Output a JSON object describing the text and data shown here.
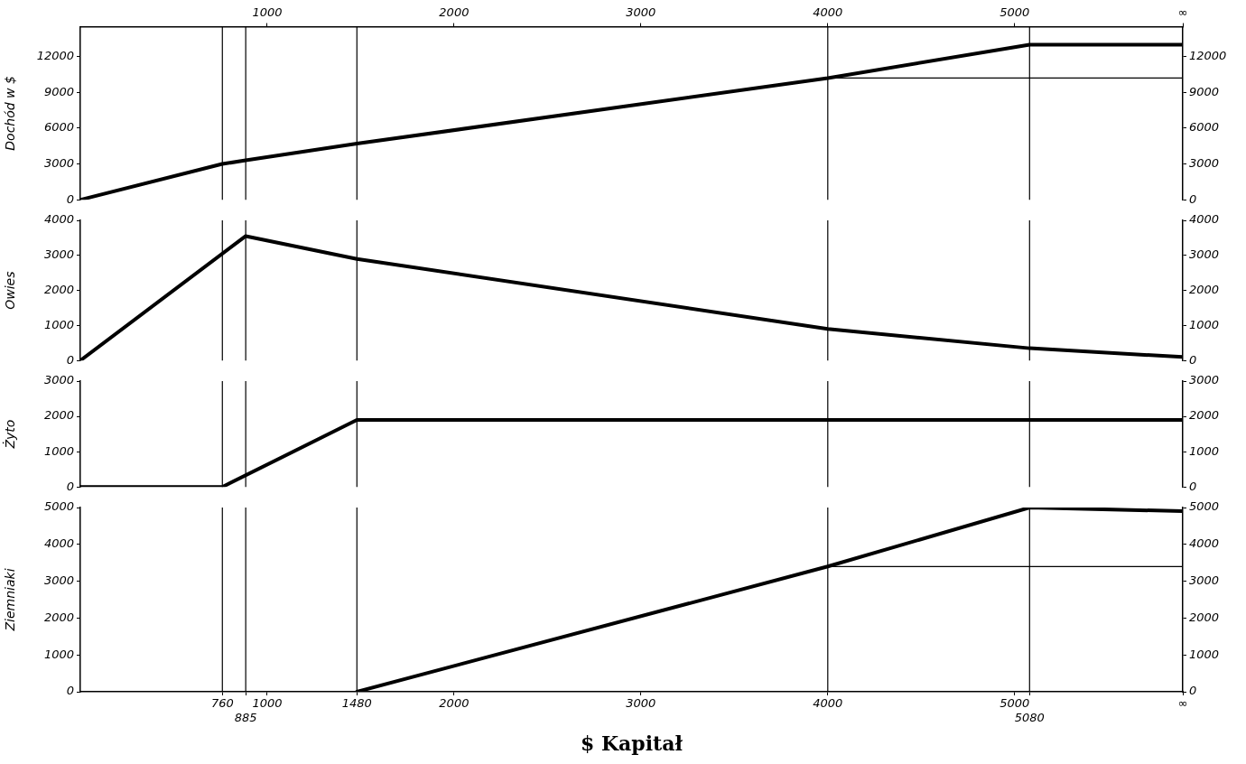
{
  "chart_data": [
    {
      "type": "line",
      "ylabel": "Dochód w $",
      "xlim": [
        0,
        5900
      ],
      "tick_labels": "y",
      "x2lim": [
        0,
        5900
      ],
      "x2ticks": [
        1000,
        2000,
        3000,
        4000,
        5000,
        {
          "value": 5900,
          "label": "∞"
        }
      ],
      "ylim": [
        0,
        14500
      ],
      "yticks": [
        0,
        3000,
        6000,
        9000,
        12000
      ],
      "y2lim": [
        0,
        14500
      ],
      "y2ticks": [
        0,
        3000,
        6000,
        9000,
        12000
      ],
      "series": [
        {
          "color": "#000000",
          "x": [
            0,
            760,
            885,
            1480,
            4000,
            5080,
            5900
          ],
          "values": [
            0,
            3000,
            3300,
            4700,
            10200,
            13000,
            13000
          ]
        },
        {
          "color": "#000000",
          "x": [
            4000,
            5900
          ],
          "values": [
            10200,
            10200
          ]
        }
      ],
      "ref_lines": [
        {
          "axis": "x",
          "value": 760
        },
        {
          "axis": "x",
          "value": 885
        },
        {
          "axis": "x",
          "value": 1480
        },
        {
          "axis": "x",
          "value": 4000
        },
        {
          "axis": "x",
          "value": 5080
        }
      ]
    },
    {
      "type": "line",
      "ylabel": "Owies",
      "xlim": [
        0,
        5900
      ],
      "tick_labels": "y",
      "ylim": [
        0,
        4000
      ],
      "yticks": [
        0,
        1000,
        2000,
        3000,
        4000
      ],
      "y2lim": [
        0,
        4000
      ],
      "y2ticks": [
        0,
        1000,
        2000,
        3000,
        4000
      ],
      "series": [
        {
          "color": "#000000",
          "x": [
            0,
            885,
            1480,
            4000,
            5080,
            5900
          ],
          "values": [
            0,
            3550,
            2900,
            900,
            350,
            100
          ]
        }
      ],
      "ref_lines": [
        {
          "axis": "x",
          "value": 760
        },
        {
          "axis": "x",
          "value": 885
        },
        {
          "axis": "x",
          "value": 1480
        },
        {
          "axis": "x",
          "value": 4000
        },
        {
          "axis": "x",
          "value": 5080
        }
      ]
    },
    {
      "type": "line",
      "ylabel": "Żyto",
      "xlim": [
        0,
        5900
      ],
      "tick_labels": "y",
      "ylim": [
        0,
        3000
      ],
      "yticks": [
        0,
        1000,
        2000,
        3000
      ],
      "y2lim": [
        0,
        3000
      ],
      "y2ticks": [
        0,
        1000,
        2000,
        3000
      ],
      "series": [
        {
          "color": "#000000",
          "x": [
            0,
            760,
            1480,
            5900
          ],
          "values": [
            0,
            0,
            1900,
            1900
          ]
        }
      ],
      "ref_lines": [
        {
          "axis": "x",
          "value": 760
        },
        {
          "axis": "x",
          "value": 885
        },
        {
          "axis": "x",
          "value": 1480
        },
        {
          "axis": "x",
          "value": 4000
        },
        {
          "axis": "x",
          "value": 5080
        }
      ]
    },
    {
      "type": "line",
      "ylabel": "Ziemniaki",
      "xlabel": "$ Kapitał",
      "xlim": [
        0,
        5900
      ],
      "xticks": [
        760,
        {
          "value": 885,
          "label": null
        },
        1000,
        1480,
        2000,
        3000,
        4000,
        5000,
        {
          "value": 5080,
          "label": null
        },
        {
          "value": 5900,
          "label": "∞"
        }
      ],
      "ylim": [
        0,
        5000
      ],
      "yticks": [
        0,
        1000,
        2000,
        3000,
        4000,
        5000
      ],
      "y2lim": [
        0,
        5000
      ],
      "y2ticks": [
        0,
        1000,
        2000,
        3000,
        4000,
        5000
      ],
      "series": [
        {
          "color": "#000000",
          "x": [
            1480,
            4000,
            5080,
            5900
          ],
          "values": [
            0,
            3400,
            5000,
            4900
          ]
        },
        {
          "color": "#000000",
          "x": [
            4000,
            5900
          ],
          "values": [
            3400,
            3400
          ]
        }
      ],
      "ref_lines": [
        {
          "axis": "x",
          "value": 760
        },
        {
          "axis": "x",
          "value": 885,
          "label": "885"
        },
        {
          "axis": "x",
          "value": 1480
        },
        {
          "axis": "x",
          "value": 4000
        },
        {
          "axis": "x",
          "value": 5080,
          "label": "5080"
        }
      ]
    }
  ]
}
